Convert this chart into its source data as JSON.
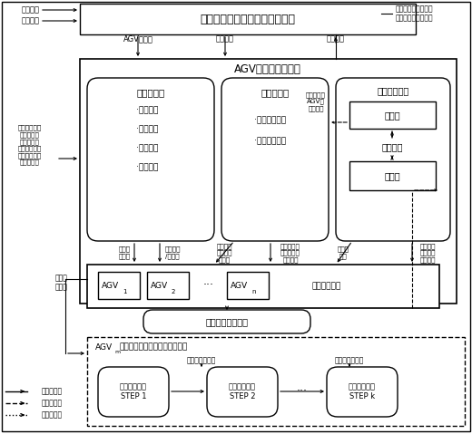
{
  "bg_color": "#ffffff",
  "title": "码头管理信息系统（上层系统）",
  "agv_system_title": "AGV群智能调度系统",
  "realtime_traffic_title": "实时交通流",
  "realtime_traffic_items": [
    "·信息采集",
    "·信息传输",
    "·信息存储",
    "·信息融合"
  ],
  "traffic_pred_title": "交通流预测",
  "traffic_pred_items": [
    "·地理信息系统",
    "·自洽交通规则"
  ],
  "dispatch_title": "调度知识管理",
  "knowledge_box": "知识库",
  "data_mining": "数据挖掘",
  "instance_box": "实例库",
  "agv_normal_label": "（常规模式）",
  "current_path_label": "当前任务路径规划",
  "agv_emergency_label": "AGVm（应急模式，作业优先级最高）",
  "step1_label": "自由路径规划\nSTEP 1",
  "step2_label": "自由路径规划\nSTEP 2",
  "stepk_label": "自由路径规划\nSTEP k",
  "traffic_dyn_pred": "交通流动态预测",
  "legend_solid": "状态信息流",
  "legend_dash": "任务信息流",
  "legend_dot": "路径信息流",
  "left_label1": "应急信息",
  "left_label2": "故障信息",
  "left_rt_label": "实时状态信息\n（万位、速\n度、作业状\n态、任务优先\n级、故障、安\n全报警等）",
  "left_bottom_label": "本次任\n务完成",
  "top_label_agv_tasks": "AGV任务集",
  "top_label_emergency": "应急任务",
  "top_label_feedback": "任务反馈",
  "top_right_text": "任务完成、无法及时\n响应任务（拥堵）等",
  "label_prev_done": "上一任\n务完成",
  "label_task_assign": "任务分配\n/重分配",
  "label_cur_traffic": "当前时刻\n交通流分\n布信息",
  "label_future_traffic": "未来交通流\n分布的滚动\n预测信息",
  "label_route_set": "可选路\n径集",
  "label_path_opt": "完成本任\n务的路径\n优化信息",
  "label_task_uncertain": "任务不确定\nAGV的\n虚拟路径"
}
